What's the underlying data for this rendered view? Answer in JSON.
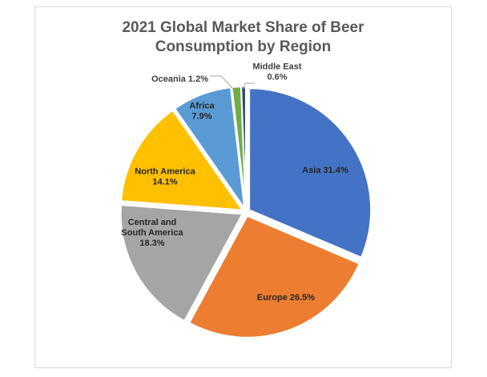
{
  "chart_data": {
    "type": "pie",
    "title": "2021 Global Market Share of Beer Consumption by Region",
    "title_lines": [
      "2021 Global Market Share of Beer",
      "Consumption by Region"
    ],
    "slices": [
      {
        "label_lines": [
          "Asia 31.4%"
        ],
        "value": 31.4,
        "color": "#4472c4",
        "text_color": "#262626"
      },
      {
        "label_lines": [
          "Europe 26.5%"
        ],
        "value": 26.5,
        "color": "#ed7d31",
        "text_color": "#262626"
      },
      {
        "label_lines": [
          "Central and",
          "South America",
          "18.3%"
        ],
        "value": 18.3,
        "color": "#a5a5a5",
        "text_color": "#262626"
      },
      {
        "label_lines": [
          "North America",
          "14.1%"
        ],
        "value": 14.1,
        "color": "#ffc000",
        "text_color": "#262626"
      },
      {
        "label_lines": [
          "Africa",
          "7.9%"
        ],
        "value": 7.9,
        "color": "#5b9bd5",
        "text_color": "#262626"
      },
      {
        "label_lines": [
          "Oceania 1.2%"
        ],
        "value": 1.2,
        "color": "#70ad47",
        "text_color": "#404040"
      },
      {
        "label_lines": [
          "Middle East",
          "0.6%"
        ],
        "value": 0.6,
        "color": "#264478",
        "text_color": "#404040"
      }
    ],
    "start_angle_deg": 0,
    "direction": "clockwise",
    "exploded": true,
    "legend": "none"
  }
}
